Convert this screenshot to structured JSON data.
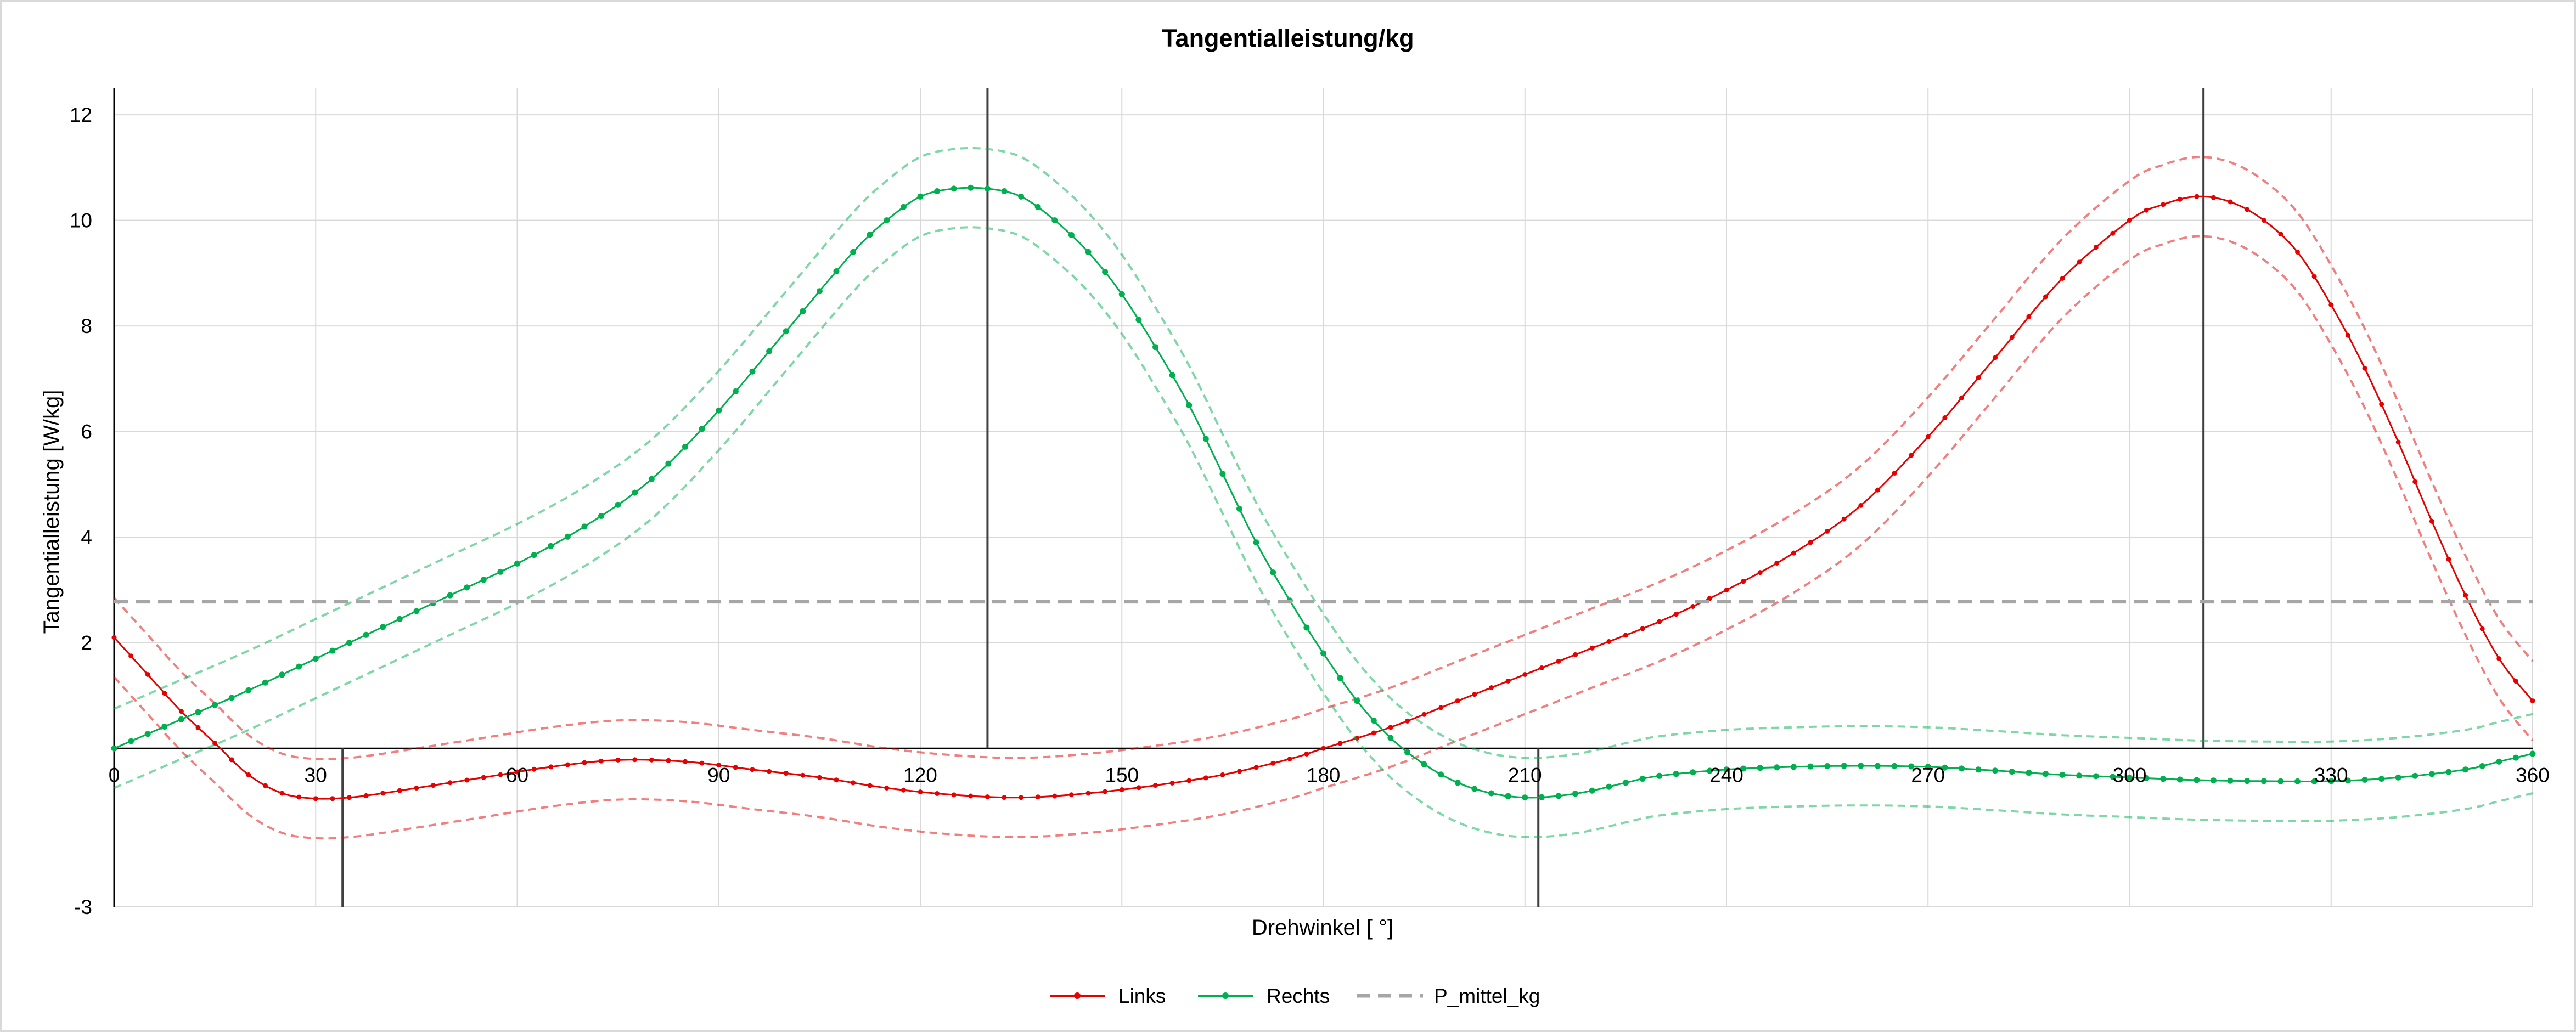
{
  "chart_data": {
    "type": "line",
    "title": "Tangentialleistung/kg",
    "xlabel": "Drehwinkel [ °]",
    "ylabel": "Tangentialleistung [W/kg]",
    "xlim": [
      0,
      360
    ],
    "ylim": [
      -3,
      12.5
    ],
    "x_ticks": [
      0,
      30,
      60,
      90,
      120,
      150,
      180,
      210,
      240,
      270,
      300,
      330,
      360
    ],
    "x_tick_labels": [
      "0",
      "30",
      "60",
      "90",
      "120",
      "150",
      "180",
      "210",
      "240",
      "270",
      "300",
      "330",
      "360"
    ],
    "y_ticks": [
      -3,
      2,
      4,
      6,
      8,
      10,
      12
    ],
    "y_tick_labels": [
      "-3",
      "2",
      "4",
      "6",
      "8",
      "10",
      "12"
    ],
    "x_axis_crossing_y": 0,
    "x_tick_labels_y": -0.5,
    "grid": true,
    "legend_position": "bottom",
    "vertical_markers": [
      {
        "x": 34,
        "y_from": -3,
        "y_to": 0
      },
      {
        "x": 130,
        "y_from": 0,
        "y_to": 12.5
      },
      {
        "x": 212,
        "y_from": -3,
        "y_to": 0
      },
      {
        "x": 311,
        "y_from": 0,
        "y_to": 12.5
      }
    ],
    "band_offset": 0.75,
    "series": [
      {
        "name": "Links",
        "color": "#e60000",
        "marker": "dot",
        "band": true,
        "points": [
          [
            0,
            2.1
          ],
          [
            5,
            1.4
          ],
          [
            10,
            0.7
          ],
          [
            15,
            0.1
          ],
          [
            20,
            -0.5
          ],
          [
            25,
            -0.85
          ],
          [
            30,
            -0.95
          ],
          [
            35,
            -0.93
          ],
          [
            40,
            -0.85
          ],
          [
            45,
            -0.75
          ],
          [
            55,
            -0.55
          ],
          [
            65,
            -0.35
          ],
          [
            75,
            -0.22
          ],
          [
            85,
            -0.25
          ],
          [
            95,
            -0.4
          ],
          [
            105,
            -0.55
          ],
          [
            115,
            -0.75
          ],
          [
            125,
            -0.88
          ],
          [
            135,
            -0.93
          ],
          [
            145,
            -0.85
          ],
          [
            155,
            -0.7
          ],
          [
            165,
            -0.5
          ],
          [
            175,
            -0.2
          ],
          [
            180,
            0
          ],
          [
            190,
            0.4
          ],
          [
            200,
            0.9
          ],
          [
            210,
            1.4
          ],
          [
            220,
            1.9
          ],
          [
            230,
            2.4
          ],
          [
            240,
            3.0
          ],
          [
            250,
            3.7
          ],
          [
            260,
            4.6
          ],
          [
            270,
            5.9
          ],
          [
            280,
            7.4
          ],
          [
            290,
            8.9
          ],
          [
            300,
            10.0
          ],
          [
            305,
            10.3
          ],
          [
            310,
            10.45
          ],
          [
            315,
            10.35
          ],
          [
            320,
            10.0
          ],
          [
            325,
            9.4
          ],
          [
            330,
            8.4
          ],
          [
            335,
            7.2
          ],
          [
            340,
            5.8
          ],
          [
            345,
            4.3
          ],
          [
            350,
            2.9
          ],
          [
            355,
            1.7
          ],
          [
            360,
            0.9
          ]
        ]
      },
      {
        "name": "Rechts",
        "color": "#00b050",
        "marker": "dot",
        "band": true,
        "points": [
          [
            0,
            0
          ],
          [
            10,
            0.55
          ],
          [
            20,
            1.1
          ],
          [
            30,
            1.7
          ],
          [
            40,
            2.3
          ],
          [
            50,
            2.9
          ],
          [
            60,
            3.5
          ],
          [
            70,
            4.2
          ],
          [
            80,
            5.1
          ],
          [
            90,
            6.4
          ],
          [
            100,
            7.9
          ],
          [
            110,
            9.4
          ],
          [
            115,
            10.0
          ],
          [
            120,
            10.45
          ],
          [
            125,
            10.6
          ],
          [
            130,
            10.6
          ],
          [
            135,
            10.45
          ],
          [
            140,
            10.0
          ],
          [
            145,
            9.4
          ],
          [
            150,
            8.6
          ],
          [
            155,
            7.6
          ],
          [
            160,
            6.5
          ],
          [
            165,
            5.2
          ],
          [
            170,
            3.9
          ],
          [
            175,
            2.8
          ],
          [
            180,
            1.8
          ],
          [
            185,
            0.9
          ],
          [
            190,
            0.2
          ],
          [
            195,
            -0.3
          ],
          [
            200,
            -0.65
          ],
          [
            205,
            -0.85
          ],
          [
            210,
            -0.93
          ],
          [
            215,
            -0.9
          ],
          [
            220,
            -0.8
          ],
          [
            225,
            -0.65
          ],
          [
            230,
            -0.52
          ],
          [
            240,
            -0.4
          ],
          [
            250,
            -0.35
          ],
          [
            260,
            -0.33
          ],
          [
            270,
            -0.35
          ],
          [
            280,
            -0.42
          ],
          [
            290,
            -0.5
          ],
          [
            300,
            -0.55
          ],
          [
            310,
            -0.6
          ],
          [
            320,
            -0.62
          ],
          [
            330,
            -0.62
          ],
          [
            340,
            -0.55
          ],
          [
            350,
            -0.4
          ],
          [
            355,
            -0.25
          ],
          [
            360,
            -0.1
          ]
        ]
      },
      {
        "name": "P_mittel_kg",
        "color": "#a6a6a6",
        "marker": "none",
        "dashed": true,
        "band": false,
        "points": [
          [
            0,
            2.78
          ],
          [
            360,
            2.78
          ]
        ]
      }
    ]
  }
}
